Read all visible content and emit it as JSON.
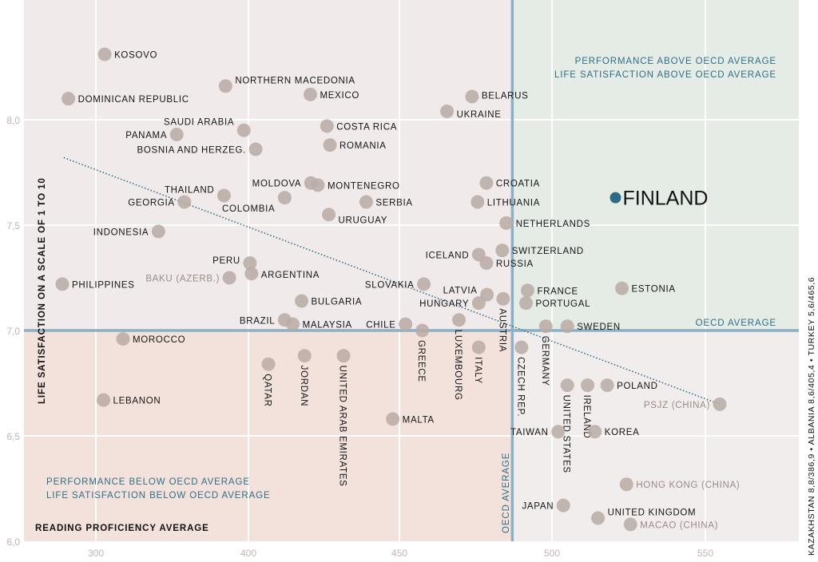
{
  "chart_data": {
    "type": "scatter",
    "xlabel": "READING PROFICIENCY AVERAGE",
    "ylabel": "LIFE SATISFACTION ON A SCALE OF 1 TO 10",
    "x_ticks": [
      300,
      400,
      450,
      500,
      550
    ],
    "x_tick_labels": [
      "300",
      "400",
      "450",
      "500",
      "550"
    ],
    "y_ticks": [
      6.0,
      6.5,
      7.0,
      7.5,
      8.0
    ],
    "y_tick_labels": [
      "6,0",
      "6,5",
      "7,0",
      "7,5",
      "8,0"
    ],
    "ylim": [
      6.0,
      8.57
    ],
    "grid": true,
    "oecd_average": {
      "reading": 487,
      "satisfaction": 7.0,
      "label_h": "OECD AVERAGE",
      "label_v": "OECD AVERAGE"
    },
    "quadrant_notes": {
      "top_right": [
        "PERFORMANCE ABOVE OECD AVERAGE",
        "LIFE SATISFACTION ABOVE OECD AVERAGE"
      ],
      "bottom_left": [
        "PERFORMANCE BELOW OECD AVERAGE",
        "LIFE SATISFACTION BELOW OECD AVERAGE"
      ]
    },
    "trend_line": {
      "from": [
        279,
        7.82
      ],
      "to": [
        554.7,
        6.65
      ]
    },
    "side_note": "KAZAKHSTAN  8,8/386,9 • ALBANIA 8,6/405,4 • TURKEY 5,6/465,6",
    "colors": {
      "dot": "#b9aaa5",
      "highlight": "#2d6a86",
      "trend": "#2f6d88",
      "oecd_line": "#8cb0c5",
      "q_top_left": "#f0ebea",
      "q_top_right": "#e5ece5",
      "q_bottom_left": "#f3e2db",
      "q_bottom_right": "#f1edec"
    },
    "points": [
      {
        "name": "KOSOVO",
        "x": 305.8,
        "y": 8.31
      },
      {
        "name": "DOMINICAN REPUBLIC",
        "x": 282,
        "y": 8.1
      },
      {
        "name": "NORTHERN MACEDONIA",
        "x": 385,
        "y": 8.16
      },
      {
        "name": "MEXICO",
        "x": 420.5,
        "y": 8.12
      },
      {
        "name": "SAUDI ARABIA",
        "x": 397,
        "y": 7.95
      },
      {
        "name": "PANAMA",
        "x": 353,
        "y": 7.93
      },
      {
        "name": "BOSNIA AND HERZEG.",
        "x": 402.4,
        "y": 7.86
      },
      {
        "name": "COSTA RICA",
        "x": 426,
        "y": 7.97
      },
      {
        "name": "ROMANIA",
        "x": 427,
        "y": 7.88
      },
      {
        "name": "BELARUS",
        "x": 473.8,
        "y": 8.11
      },
      {
        "name": "UKRAINE",
        "x": 465.6,
        "y": 8.04
      },
      {
        "name": "CROATIA",
        "x": 478.5,
        "y": 7.7
      },
      {
        "name": "LITHUANIA",
        "x": 475.6,
        "y": 7.61
      },
      {
        "name": "NETHERLANDS",
        "x": 485,
        "y": 7.51
      },
      {
        "name": "SWITZERLAND",
        "x": 483.7,
        "y": 7.38
      },
      {
        "name": "RUSSIA",
        "x": 478.5,
        "y": 7.32
      },
      {
        "name": "ICELAND",
        "x": 476,
        "y": 7.36
      },
      {
        "name": "FINLAND",
        "x": 520.7,
        "y": 7.63,
        "highlight": true
      },
      {
        "name": "MOLDOVA",
        "x": 420.7,
        "y": 7.7
      },
      {
        "name": "MONTENEGRO",
        "x": 423,
        "y": 7.69
      },
      {
        "name": "THAILAND",
        "x": 384,
        "y": 7.64
      },
      {
        "name": "GEORGIA",
        "x": 358,
        "y": 7.61
      },
      {
        "name": "COLOMBIA",
        "x": 412,
        "y": 7.63
      },
      {
        "name": "SERBIA",
        "x": 439,
        "y": 7.61
      },
      {
        "name": "URUGUAY",
        "x": 426.6,
        "y": 7.55
      },
      {
        "name": "INDONESIA",
        "x": 341,
        "y": 7.47
      },
      {
        "name": "PERU",
        "x": 400.5,
        "y": 7.32
      },
      {
        "name": "BAKU (AZERB.)",
        "x": 387.5,
        "y": 7.25,
        "region": true
      },
      {
        "name": "ARGENTINA",
        "x": 401,
        "y": 7.27
      },
      {
        "name": "PHILIPPINES",
        "x": 278,
        "y": 7.22
      },
      {
        "name": "BULGARIA",
        "x": 417.6,
        "y": 7.14
      },
      {
        "name": "SLOVAKIA",
        "x": 458,
        "y": 7.22
      },
      {
        "name": "LATVIA",
        "x": 478.7,
        "y": 7.17
      },
      {
        "name": "HUNGARY",
        "x": 476,
        "y": 7.13
      },
      {
        "name": "AUSTRIA",
        "x": 484,
        "y": 7.15
      },
      {
        "name": "FRANCE",
        "x": 492,
        "y": 7.19
      },
      {
        "name": "PORTUGAL",
        "x": 491.5,
        "y": 7.13
      },
      {
        "name": "ESTONIA",
        "x": 522.8,
        "y": 7.2
      },
      {
        "name": "BRAZIL",
        "x": 412,
        "y": 7.05
      },
      {
        "name": "MALAYSIA",
        "x": 414.7,
        "y": 7.03
      },
      {
        "name": "CHILE",
        "x": 452,
        "y": 7.03
      },
      {
        "name": "GREECE",
        "x": 457.5,
        "y": 7.0
      },
      {
        "name": "LUXEMBOURG",
        "x": 469.5,
        "y": 7.05
      },
      {
        "name": "ITALY",
        "x": 476,
        "y": 6.92
      },
      {
        "name": "CZECH REP.",
        "x": 490,
        "y": 6.92
      },
      {
        "name": "GERMANY",
        "x": 498,
        "y": 7.02
      },
      {
        "name": "SWEDEN",
        "x": 505,
        "y": 7.02
      },
      {
        "name": "MOROCCO",
        "x": 317.8,
        "y": 6.96
      },
      {
        "name": "QATAR",
        "x": 406.6,
        "y": 6.84
      },
      {
        "name": "JORDAN",
        "x": 418.6,
        "y": 6.88
      },
      {
        "name": "UNITED ARAB EMIRATES",
        "x": 431.5,
        "y": 6.88
      },
      {
        "name": "LEBANON",
        "x": 305,
        "y": 6.67
      },
      {
        "name": "MALTA",
        "x": 447.8,
        "y": 6.58
      },
      {
        "name": "UNITED STATES",
        "x": 505,
        "y": 6.74
      },
      {
        "name": "IRELAND",
        "x": 511.6,
        "y": 6.74
      },
      {
        "name": "POLAND",
        "x": 518,
        "y": 6.74
      },
      {
        "name": "PSJZ (CHINA)",
        "x": 554.7,
        "y": 6.65,
        "region": true
      },
      {
        "name": "TAIWAN",
        "x": 502,
        "y": 6.52
      },
      {
        "name": "KOREA",
        "x": 514,
        "y": 6.52
      },
      {
        "name": "HONG KONG (CHINA)",
        "x": 524.3,
        "y": 6.27,
        "region": true
      },
      {
        "name": "JAPAN",
        "x": 503.7,
        "y": 6.17
      },
      {
        "name": "UNITED KINGDOM",
        "x": 515,
        "y": 6.11
      },
      {
        "name": "MACAO (CHINA)",
        "x": 525.6,
        "y": 6.08,
        "region": true
      }
    ]
  }
}
